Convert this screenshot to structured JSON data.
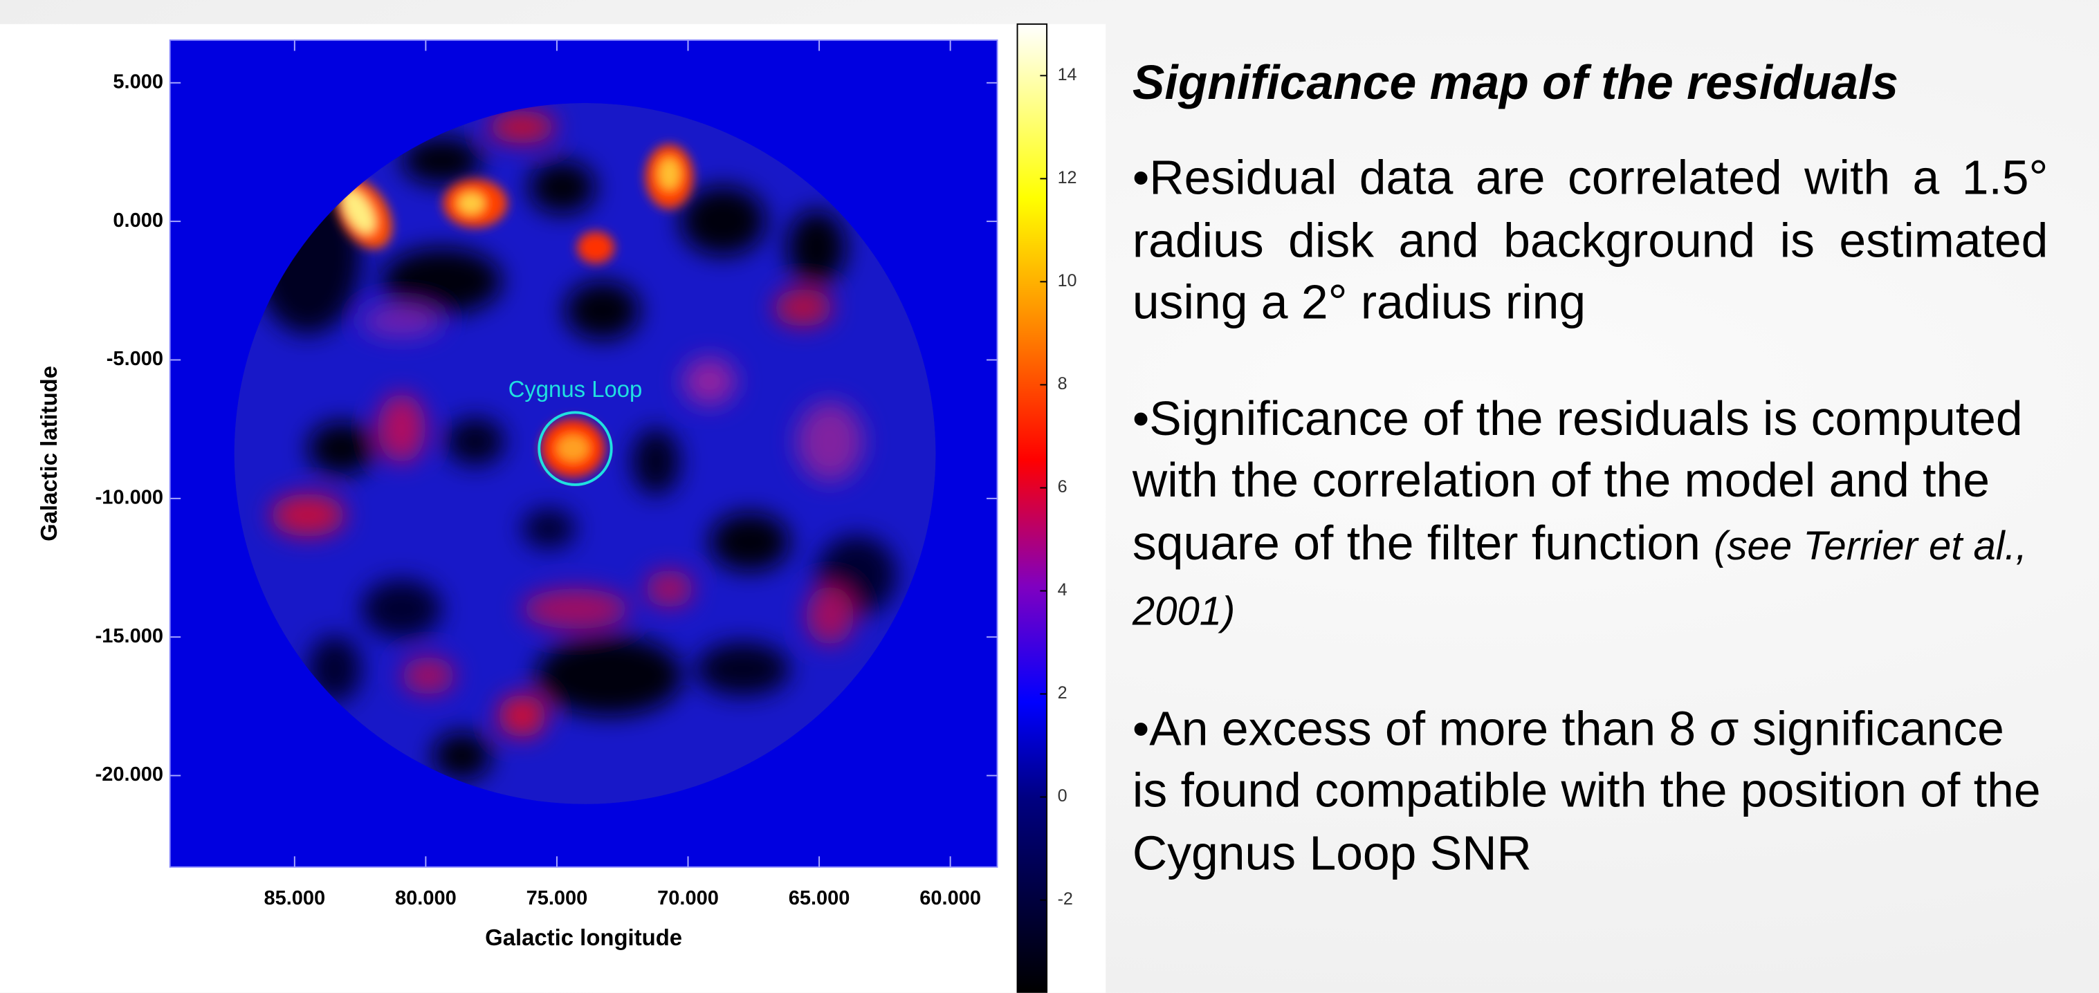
{
  "chart_data": {
    "type": "heatmap",
    "xlabel": "Galactic longitude",
    "ylabel": "Galactic latitude",
    "xlim": [
      89.75,
      58.21
    ],
    "ylim": [
      -23.3,
      6.54
    ],
    "xticks": [
      {
        "value": 85,
        "label": "85.000"
      },
      {
        "value": 80,
        "label": "80.000"
      },
      {
        "value": 75,
        "label": "75.000"
      },
      {
        "value": 70,
        "label": "70.000"
      },
      {
        "value": 65,
        "label": "65.000"
      },
      {
        "value": 60,
        "label": "60.000"
      }
    ],
    "yticks": [
      {
        "value": 5,
        "label": "5.000"
      },
      {
        "value": 0,
        "label": "0.000"
      },
      {
        "value": -5,
        "label": "-5.000"
      },
      {
        "value": -10,
        "label": "-10.000"
      },
      {
        "value": -15,
        "label": "-15.000"
      },
      {
        "value": -20,
        "label": "-20.000"
      }
    ],
    "zlim": [
      -3.8,
      15
    ],
    "zticks": [
      -2,
      0,
      2,
      4,
      6,
      8,
      10,
      12,
      14
    ],
    "annotation": {
      "text": "Cygnus Loop",
      "x": 74.3,
      "y": -8.2
    }
  },
  "text_panel": {
    "title": "Significance map of the residuals",
    "bullets": [
      {
        "text": "•Residual data are correlated with a 1.5° radius disk  and background is estimated using a 2° radius ring"
      },
      {
        "text": "•Significance of the residuals is computed with the correlation of the model and the square of the filter function",
        "note": "(see Terrier et al., 2001)"
      },
      {
        "text": "•An excess of more than 8 σ significance is found compatible with the position of the Cygnus Loop SNR"
      }
    ]
  }
}
